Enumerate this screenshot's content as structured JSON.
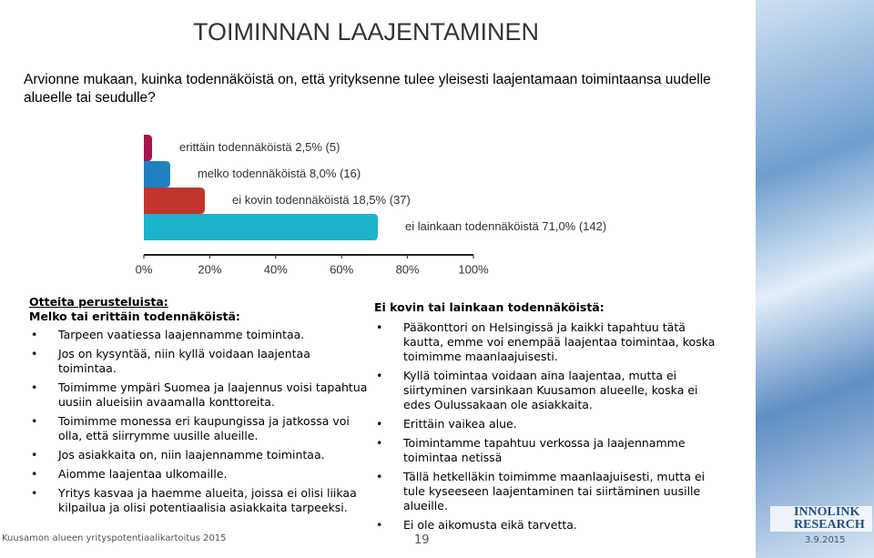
{
  "title": "TOIMINNAN LAAJENTAMINEN",
  "question": "Arvionne mukaan, kuinka todennäköistä on, että yrityksenne tulee yleisesti laajentamaan toimintaansa uudelle alueelle tai seudulle?",
  "chart_data": {
    "type": "barh",
    "categories": [
      "erittäin todennäköistä",
      "melko todennäköistä",
      "ei kovin todennäköistä",
      "ei lainkaan todennäköistä"
    ],
    "values": [
      2.5,
      8.0,
      18.5,
      71.0
    ],
    "value_labels": [
      "2,5% (5)",
      "8,0% (16)",
      "18,5% (37)",
      "71,0% (142)"
    ],
    "colors": [
      "#a3154b",
      "#1f7fc1",
      "#c2352c",
      "#1cb2c9"
    ],
    "xlim": [
      0,
      100
    ],
    "xticks": [
      {
        "value": 0,
        "label": "0%"
      },
      {
        "value": 20,
        "label": "20%"
      },
      {
        "value": 40,
        "label": "40%"
      },
      {
        "value": 60,
        "label": "60%"
      },
      {
        "value": 80,
        "label": "80%"
      },
      {
        "value": 100,
        "label": "100%"
      }
    ]
  },
  "left": {
    "heading": "Otteita perusteluista:",
    "subheading": "Melko tai erittäin todennäköistä:",
    "bullets": [
      "Tarpeen vaatiessa laajennamme toimintaa.",
      "Jos on kysyntää, niin kyllä voidaan laajentaa toimintaa.",
      "Toimimme ympäri Suomea ja laajennus voisi tapahtua uusiin alueisiin avaamalla konttoreita.",
      "Toimimme monessa eri kaupungissa ja jatkossa voi olla, että siirrymme uusille alueille.",
      "Jos asiakkaita on, niin laajennamme toimintaa.",
      "Aiomme laajentaa ulkomaille.",
      "Yritys kasvaa ja haemme alueita, joissa ei olisi liikaa kilpailua ja olisi potentiaalisia asiakkaita tarpeeksi."
    ]
  },
  "right": {
    "heading": "Ei kovin tai lainkaan todennäköistä:",
    "bullets": [
      "Pääkonttori on Helsingissä ja kaikki tapahtuu tätä kautta, emme voi enempää laajentaa toimintaa, koska toimimme maanlaajuisesti.",
      "Kyllä toimintaa voidaan aina laajentaa, mutta ei siirtyminen varsinkaan Kuusamon alueelle, koska ei edes Oulussakaan ole asiakkaita.",
      "Erittäin vaikea alue.",
      "Toimintamme tapahtuu verkossa ja laajennamme toimintaa netissä",
      "Tällä hetkelläkin toimimme maanlaajuisesti, mutta ei tule kyseeseen laajentaminen tai siirtäminen uusille alueille.",
      "Ei ole aikomusta eikä tarvetta."
    ]
  },
  "footer": {
    "source": "Kuusamon alueen yrityspotentiaalikartoitus 2015",
    "page": "19",
    "date": "3.9.2015",
    "logo_top": "INNOLINK",
    "logo_bottom": "RESEARCH"
  }
}
